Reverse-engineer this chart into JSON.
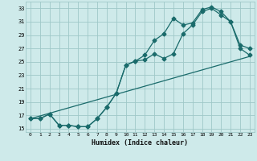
{
  "xlabel": "Humidex (Indice chaleur)",
  "bg_color": "#ceeaea",
  "line_color": "#1a6b6b",
  "grid_color": "#9fc8c8",
  "xlim": [
    -0.5,
    23.5
  ],
  "ylim": [
    14.5,
    34.0
  ],
  "xticks": [
    0,
    1,
    2,
    3,
    4,
    5,
    6,
    7,
    8,
    9,
    10,
    11,
    12,
    13,
    14,
    15,
    16,
    17,
    18,
    19,
    20,
    21,
    22,
    23
  ],
  "yticks": [
    15,
    17,
    19,
    21,
    23,
    25,
    27,
    29,
    31,
    33
  ],
  "line1_x": [
    0,
    1,
    2,
    3,
    4,
    5,
    6,
    7,
    8,
    9,
    10,
    11,
    12,
    13,
    14,
    15,
    16,
    17,
    18,
    19,
    20,
    21,
    22,
    23
  ],
  "line1_y": [
    16.5,
    16.5,
    17.2,
    15.5,
    15.5,
    15.3,
    15.3,
    16.5,
    18.2,
    20.3,
    24.5,
    25.1,
    25.3,
    26.2,
    25.5,
    26.2,
    29.2,
    30.5,
    32.5,
    33.0,
    32.0,
    31.0,
    27.0,
    26.0
  ],
  "line2_x": [
    0,
    1,
    2,
    3,
    4,
    5,
    6,
    7,
    8,
    9,
    10,
    11,
    12,
    13,
    14,
    15,
    16,
    17,
    18,
    19,
    20,
    21,
    22,
    23
  ],
  "line2_y": [
    16.5,
    16.5,
    17.2,
    15.5,
    15.5,
    15.3,
    15.3,
    16.5,
    18.2,
    20.3,
    24.5,
    25.1,
    26.0,
    28.2,
    29.2,
    31.5,
    30.5,
    30.8,
    32.8,
    33.2,
    32.5,
    31.0,
    27.5,
    27.0
  ],
  "line3_x": [
    0,
    23
  ],
  "line3_y": [
    16.5,
    25.8
  ]
}
